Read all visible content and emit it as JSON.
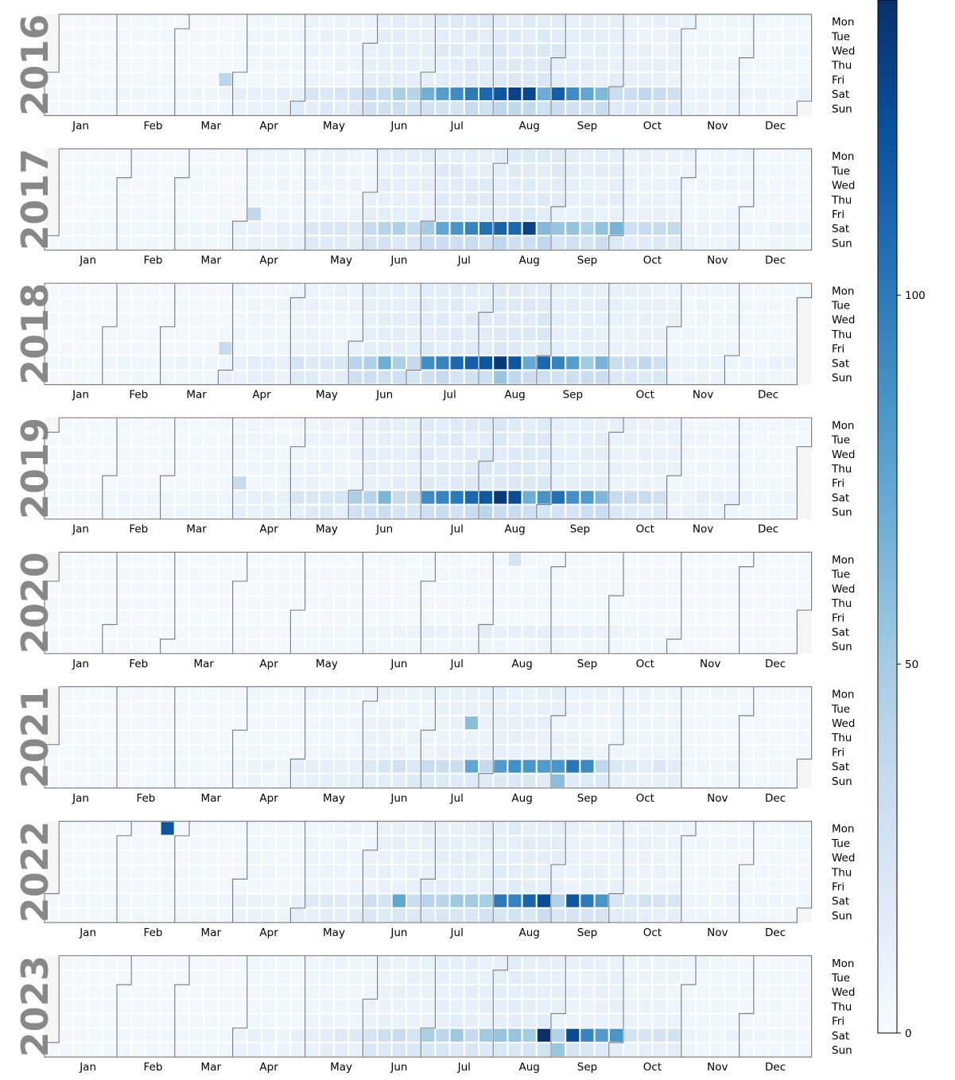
{
  "chart_data": {
    "type": "heatmap",
    "title": "",
    "years": [
      2016,
      2017,
      2018,
      2019,
      2020,
      2021,
      2022,
      2023
    ],
    "day_labels": [
      "Mon",
      "Tue",
      "Wed",
      "Thu",
      "Fri",
      "Sat",
      "Sun"
    ],
    "month_labels": [
      "Jan",
      "Feb",
      "Mar",
      "Apr",
      "May",
      "Jun",
      "Jul",
      "Aug",
      "Sep",
      "Oct",
      "Nov",
      "Dec"
    ],
    "colormap": "Blues",
    "colorbar": {
      "range": [
        0,
        140
      ],
      "ticks": [
        0,
        50,
        100
      ]
    },
    "cell_border_color": "#ffffff",
    "month_outline_color": "#808080",
    "label_color": "#888888",
    "background_value": 3,
    "defaults": {
      "weekday": {
        "Jan": 3,
        "Feb": 4,
        "Mar": 4,
        "Apr": 6,
        "May": 8,
        "Jun": 13,
        "Jul": 16,
        "Aug": 18,
        "Sep": 13,
        "Oct": 10,
        "Nov": 6,
        "Dec": 5
      },
      "saturday": {
        "Jan": 5,
        "Feb": 6,
        "Mar": 7,
        "Apr": 12,
        "May": 22,
        "Jun": 40,
        "Jul": 62,
        "Aug": 78,
        "Sep": 60,
        "Oct": 32,
        "Nov": 10,
        "Dec": 8
      },
      "sunday": {
        "Jan": 4,
        "Feb": 5,
        "Mar": 6,
        "Apr": 10,
        "May": 16,
        "Jun": 26,
        "Jul": 30,
        "Aug": 34,
        "Sep": 28,
        "Oct": 18,
        "Nov": 8,
        "Dec": 6
      }
    },
    "year_scale": {
      "2016": 1.0,
      "2017": 0.95,
      "2018": 1.0,
      "2019": 1.0,
      "2020": 0.12,
      "2021": 0.55,
      "2022": 0.75,
      "2023": 0.7
    },
    "highlights": [
      {
        "date": "2016-03-25",
        "value": 40
      },
      {
        "date": "2016-07-09",
        "value": 80
      },
      {
        "date": "2016-07-16",
        "value": 90
      },
      {
        "date": "2016-07-23",
        "value": 100
      },
      {
        "date": "2016-07-30",
        "value": 110
      },
      {
        "date": "2016-08-06",
        "value": 120
      },
      {
        "date": "2016-08-13",
        "value": 130
      },
      {
        "date": "2016-08-20",
        "value": 128
      },
      {
        "date": "2016-09-03",
        "value": 115
      },
      {
        "date": "2016-09-10",
        "value": 90
      },
      {
        "date": "2016-09-17",
        "value": 75
      },
      {
        "date": "2017-04-07",
        "value": 38
      },
      {
        "date": "2017-07-08",
        "value": 75
      },
      {
        "date": "2017-07-15",
        "value": 85
      },
      {
        "date": "2017-07-22",
        "value": 95
      },
      {
        "date": "2017-07-29",
        "value": 105
      },
      {
        "date": "2017-08-05",
        "value": 112
      },
      {
        "date": "2017-08-12",
        "value": 110
      },
      {
        "date": "2017-08-19",
        "value": 130
      },
      {
        "date": "2018-03-30",
        "value": 35
      },
      {
        "date": "2018-06-16",
        "value": 70
      },
      {
        "date": "2018-07-07",
        "value": 90
      },
      {
        "date": "2018-07-14",
        "value": 95
      },
      {
        "date": "2018-07-21",
        "value": 110
      },
      {
        "date": "2018-07-28",
        "value": 115
      },
      {
        "date": "2018-08-04",
        "value": 120
      },
      {
        "date": "2018-08-11",
        "value": 135
      },
      {
        "date": "2018-08-18",
        "value": 120
      },
      {
        "date": "2018-09-01",
        "value": 110
      },
      {
        "date": "2018-09-08",
        "value": 95
      },
      {
        "date": "2018-09-15",
        "value": 80
      },
      {
        "date": "2018-08-12",
        "value": 55
      },
      {
        "date": "2019-04-05",
        "value": 35
      },
      {
        "date": "2019-06-15",
        "value": 65
      },
      {
        "date": "2019-07-06",
        "value": 90
      },
      {
        "date": "2019-07-13",
        "value": 95
      },
      {
        "date": "2019-07-20",
        "value": 100
      },
      {
        "date": "2019-07-27",
        "value": 110
      },
      {
        "date": "2019-08-03",
        "value": 118
      },
      {
        "date": "2019-08-10",
        "value": 135
      },
      {
        "date": "2019-08-17",
        "value": 125
      },
      {
        "date": "2019-09-07",
        "value": 105
      },
      {
        "date": "2019-09-14",
        "value": 88
      },
      {
        "date": "2019-09-21",
        "value": 82
      },
      {
        "date": "2020-08-10",
        "value": 25
      },
      {
        "date": "2021-07-21",
        "value": 60
      },
      {
        "date": "2021-07-24",
        "value": 75
      },
      {
        "date": "2021-08-07",
        "value": 82
      },
      {
        "date": "2021-08-14",
        "value": 88
      },
      {
        "date": "2021-08-21",
        "value": 85
      },
      {
        "date": "2021-08-28",
        "value": 82
      },
      {
        "date": "2021-09-04",
        "value": 85
      },
      {
        "date": "2021-09-11",
        "value": 102
      },
      {
        "date": "2021-09-18",
        "value": 92
      },
      {
        "date": "2021-09-05",
        "value": 60
      },
      {
        "date": "2022-02-21",
        "value": 120
      },
      {
        "date": "2022-08-06",
        "value": 100
      },
      {
        "date": "2022-08-13",
        "value": 95
      },
      {
        "date": "2022-08-20",
        "value": 112
      },
      {
        "date": "2022-08-27",
        "value": 125
      },
      {
        "date": "2022-09-10",
        "value": 120
      },
      {
        "date": "2022-09-17",
        "value": 100
      },
      {
        "date": "2022-09-24",
        "value": 85
      },
      {
        "date": "2022-06-18",
        "value": 75
      },
      {
        "date": "2023-08-26",
        "value": 140
      },
      {
        "date": "2023-09-09",
        "value": 125
      },
      {
        "date": "2023-09-16",
        "value": 95
      },
      {
        "date": "2023-09-23",
        "value": 82
      },
      {
        "date": "2023-09-30",
        "value": 85
      },
      {
        "date": "2023-09-03",
        "value": 55
      }
    ]
  }
}
